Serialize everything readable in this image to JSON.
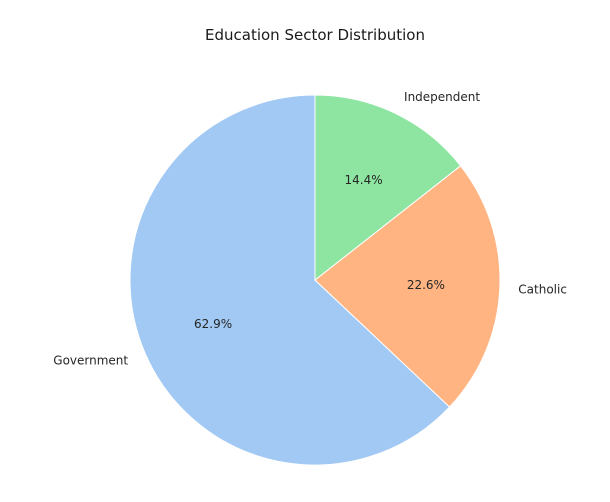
{
  "chart_data": {
    "type": "pie",
    "title": "Education Sector Distribution",
    "categories": [
      "Government",
      "Catholic",
      "Independent"
    ],
    "values": [
      62.9,
      22.6,
      14.4
    ],
    "percent_labels": [
      "62.9%",
      "22.6%",
      "14.4%"
    ],
    "colors": [
      "#a1c9f4",
      "#ffb482",
      "#8de5a1"
    ],
    "start_angle_deg": 90,
    "direction": "counterclockwise"
  }
}
